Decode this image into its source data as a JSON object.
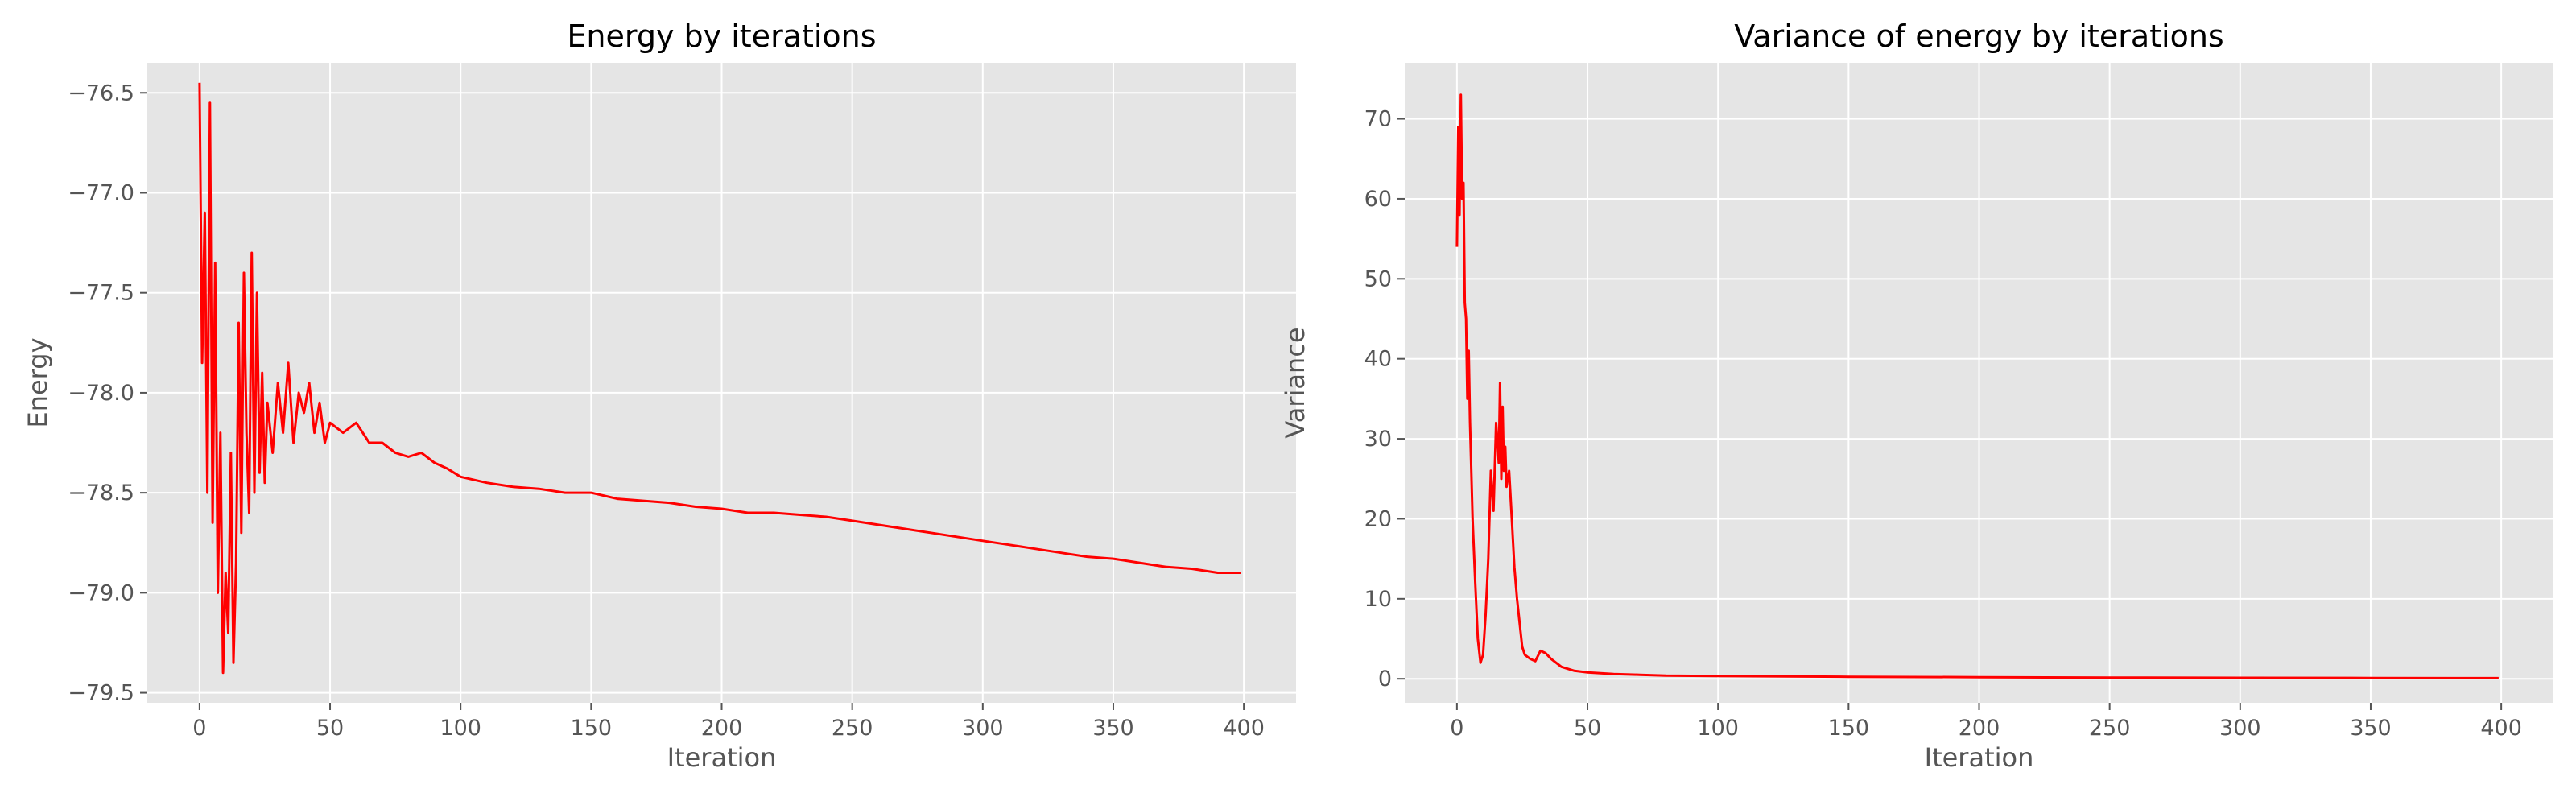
{
  "colors": {
    "plot_background": "#e5e5e5",
    "grid": "#ffffff",
    "line": "#ff0000",
    "tick_text": "#555555",
    "label_text": "#555555",
    "title_text": "#000000"
  },
  "chart_data": [
    {
      "type": "line",
      "title": "Energy by iterations",
      "xlabel": "Iteration",
      "ylabel": "Energy",
      "xlim": [
        -20,
        420
      ],
      "ylim": [
        -79.55,
        -76.35
      ],
      "xticks": [
        0,
        50,
        100,
        150,
        200,
        250,
        300,
        350,
        400
      ],
      "yticks": [
        -79.5,
        -79.0,
        -78.5,
        -78.0,
        -77.5,
        -77.0,
        -76.5
      ],
      "ytick_labels": [
        "−79.5",
        "−79.0",
        "−78.5",
        "−78.0",
        "−77.5",
        "−77.0",
        "−76.5"
      ],
      "grid": true,
      "series": [
        {
          "color": "#ff0000",
          "x": [
            0,
            1,
            2,
            3,
            4,
            5,
            6,
            7,
            8,
            9,
            10,
            11,
            12,
            13,
            14,
            15,
            16,
            17,
            18,
            19,
            20,
            21,
            22,
            23,
            24,
            25,
            26,
            28,
            30,
            32,
            34,
            36,
            38,
            40,
            42,
            44,
            46,
            48,
            50,
            55,
            60,
            65,
            70,
            75,
            80,
            85,
            90,
            95,
            100,
            110,
            120,
            130,
            140,
            150,
            160,
            170,
            180,
            190,
            200,
            210,
            220,
            230,
            240,
            250,
            260,
            270,
            280,
            290,
            300,
            310,
            320,
            330,
            340,
            350,
            360,
            370,
            380,
            390,
            399
          ],
          "y": [
            -76.45,
            -77.85,
            -77.1,
            -78.5,
            -76.55,
            -78.65,
            -77.35,
            -79.0,
            -78.2,
            -79.4,
            -78.9,
            -79.2,
            -78.3,
            -79.35,
            -78.85,
            -77.65,
            -78.7,
            -77.4,
            -78.2,
            -78.6,
            -77.3,
            -78.5,
            -77.5,
            -78.4,
            -77.9,
            -78.45,
            -78.05,
            -78.3,
            -77.95,
            -78.2,
            -77.85,
            -78.25,
            -78.0,
            -78.1,
            -77.95,
            -78.2,
            -78.05,
            -78.25,
            -78.15,
            -78.2,
            -78.15,
            -78.25,
            -78.25,
            -78.3,
            -78.32,
            -78.3,
            -78.35,
            -78.38,
            -78.42,
            -78.45,
            -78.47,
            -78.48,
            -78.5,
            -78.5,
            -78.53,
            -78.54,
            -78.55,
            -78.57,
            -78.58,
            -78.6,
            -78.6,
            -78.61,
            -78.62,
            -78.64,
            -78.66,
            -78.68,
            -78.7,
            -78.72,
            -78.74,
            -78.76,
            -78.78,
            -78.8,
            -78.82,
            -78.83,
            -78.85,
            -78.87,
            -78.88,
            -78.9,
            -78.9
          ]
        }
      ]
    },
    {
      "type": "line",
      "title": "Variance of energy by iterations",
      "xlabel": "Iteration",
      "ylabel": "Variance",
      "xlim": [
        -20,
        420
      ],
      "ylim": [
        -3,
        77
      ],
      "xticks": [
        0,
        50,
        100,
        150,
        200,
        250,
        300,
        350,
        400
      ],
      "yticks": [
        0,
        10,
        20,
        30,
        40,
        50,
        60,
        70
      ],
      "ytick_labels": [
        "0",
        "10",
        "20",
        "30",
        "40",
        "50",
        "60",
        "70"
      ],
      "grid": true,
      "series": [
        {
          "color": "#ff0000",
          "x": [
            0,
            0.5,
            1,
            1.5,
            2,
            2.5,
            3,
            3.5,
            4,
            4.5,
            5,
            6,
            7,
            8,
            9,
            10,
            11,
            12,
            13,
            14,
            15,
            16,
            16.5,
            17,
            17.5,
            18,
            18.5,
            19,
            20,
            21,
            22,
            23,
            24,
            25,
            26,
            28,
            30,
            32,
            34,
            36,
            38,
            40,
            45,
            50,
            60,
            70,
            80,
            100,
            150,
            200,
            250,
            300,
            350,
            399
          ],
          "y": [
            54,
            69,
            58,
            73,
            60,
            62,
            47,
            45,
            35,
            41,
            32,
            20,
            12,
            5,
            2,
            3,
            8,
            15,
            26,
            21,
            32,
            27,
            37,
            25,
            34,
            26,
            29,
            24,
            26,
            20,
            14,
            10,
            7,
            4,
            3,
            2.5,
            2.2,
            3.5,
            3.2,
            2.5,
            2,
            1.5,
            1.0,
            0.8,
            0.6,
            0.5,
            0.4,
            0.35,
            0.25,
            0.2,
            0.15,
            0.12,
            0.1,
            0.08
          ]
        }
      ]
    }
  ]
}
